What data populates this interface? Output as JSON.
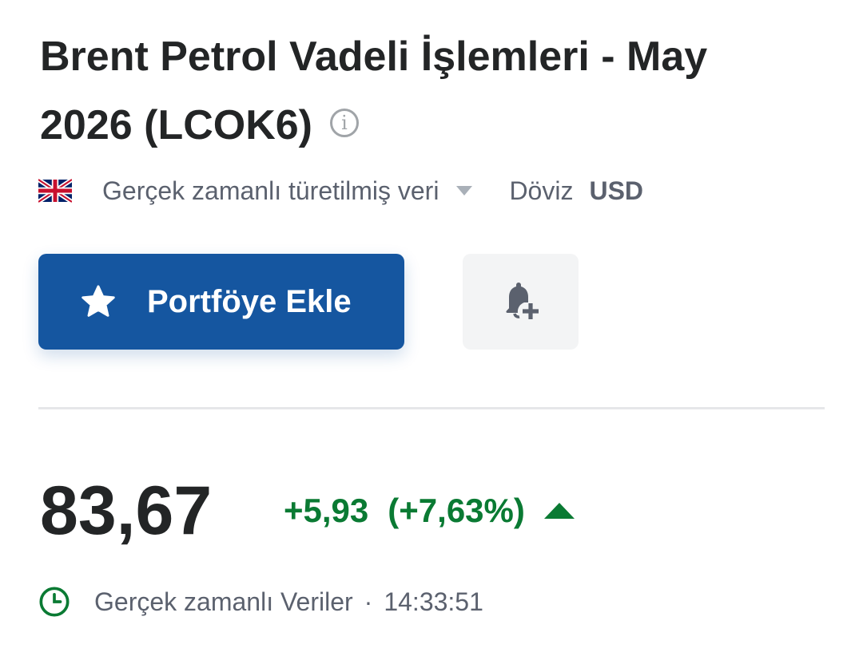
{
  "header": {
    "title": "Brent Petrol Vadeli İşlemleri - May 2026 (LCOK6)",
    "info_icon": "info-circle-icon"
  },
  "meta": {
    "flag_icon": "uk-flag-icon",
    "data_source": "Gerçek zamanlı türetilmiş veri",
    "currency_label": "Döviz",
    "currency_value": "USD"
  },
  "actions": {
    "portfolio_label": "Portföye Ekle",
    "portfolio_icon": "star-icon",
    "alert_icon": "bell-plus-icon",
    "primary_color": "#1556a0"
  },
  "quote": {
    "price": "83,67",
    "change": "+5,93",
    "change_percent": "(+7,63%)",
    "direction": "up",
    "change_color": "#0a7a33"
  },
  "status": {
    "icon": "clock-icon",
    "label": "Gerçek zamanlı Veriler",
    "separator": "·",
    "time": "14:33:51"
  }
}
